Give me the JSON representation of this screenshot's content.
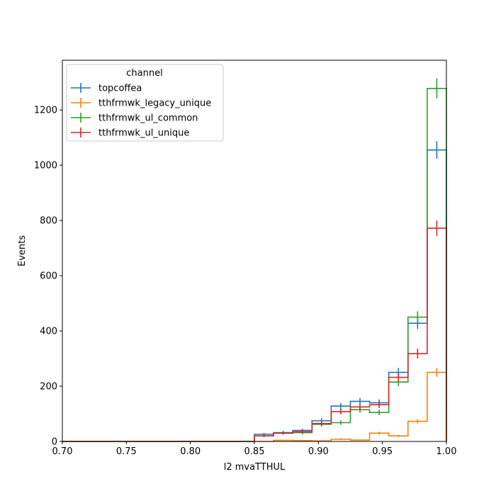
{
  "chart_data": {
    "type": "histogram-step",
    "xlabel": "l2 mvaTTHUL",
    "ylabel": "Events",
    "xlim": [
      0.7,
      1.0
    ],
    "ylim": [
      0,
      1380
    ],
    "x_ticks": [
      "0.70",
      "0.75",
      "0.80",
      "0.85",
      "0.90",
      "0.95",
      "1.00"
    ],
    "x_tick_values": [
      0.7,
      0.75,
      0.8,
      0.85,
      0.9,
      0.95,
      1.0
    ],
    "y_ticks": [
      "0",
      "200",
      "400",
      "600",
      "800",
      "1000",
      "1200"
    ],
    "y_tick_values": [
      0,
      200,
      400,
      600,
      800,
      1000,
      1200
    ],
    "legend": {
      "title": "channel",
      "placement": "top-left"
    },
    "bin_edges": [
      0.7,
      0.715,
      0.73,
      0.745,
      0.76,
      0.775,
      0.79,
      0.805,
      0.82,
      0.835,
      0.85,
      0.865,
      0.88,
      0.895,
      0.91,
      0.925,
      0.94,
      0.955,
      0.97,
      0.985,
      1.0
    ],
    "series": [
      {
        "name": "topcoffea",
        "color": "#1f77b4",
        "values": [
          0,
          0,
          0,
          0,
          0,
          0,
          0,
          0,
          0,
          0,
          26,
          32,
          40,
          75,
          128,
          145,
          140,
          250,
          428,
          1055
        ],
        "errors": [
          0,
          0,
          0,
          0,
          0,
          0,
          0,
          0,
          0,
          0,
          5,
          6,
          6,
          9,
          11,
          12,
          12,
          16,
          21,
          32
        ]
      },
      {
        "name": "tthfrmwk_legacy_unique",
        "color": "#ff7f0e",
        "values": [
          0,
          0,
          0,
          0,
          0,
          0,
          0,
          0,
          0,
          0,
          0,
          4,
          3,
          2,
          8,
          5,
          30,
          20,
          73,
          250
        ],
        "errors": [
          0,
          0,
          0,
          0,
          0,
          0,
          0,
          0,
          0,
          0,
          0,
          2,
          2,
          1,
          3,
          2,
          5,
          4,
          8,
          16
        ]
      },
      {
        "name": "tthfrmwk_ul_common",
        "color": "#2ca02c",
        "values": [
          0,
          0,
          0,
          0,
          0,
          0,
          0,
          0,
          0,
          0,
          20,
          30,
          32,
          62,
          68,
          115,
          105,
          215,
          450,
          1278
        ],
        "errors": [
          0,
          0,
          0,
          0,
          0,
          0,
          0,
          0,
          0,
          0,
          4,
          5,
          6,
          8,
          8,
          11,
          10,
          15,
          21,
          36
        ]
      },
      {
        "name": "tthfrmwk_ul_unique",
        "color": "#d62728",
        "values": [
          0,
          0,
          0,
          0,
          0,
          0,
          0,
          0,
          0,
          0,
          20,
          30,
          35,
          65,
          108,
          125,
          133,
          232,
          318,
          772
        ],
        "errors": [
          0,
          0,
          0,
          0,
          0,
          0,
          0,
          0,
          0,
          0,
          4,
          5,
          6,
          8,
          10,
          11,
          12,
          15,
          18,
          28
        ]
      }
    ]
  }
}
